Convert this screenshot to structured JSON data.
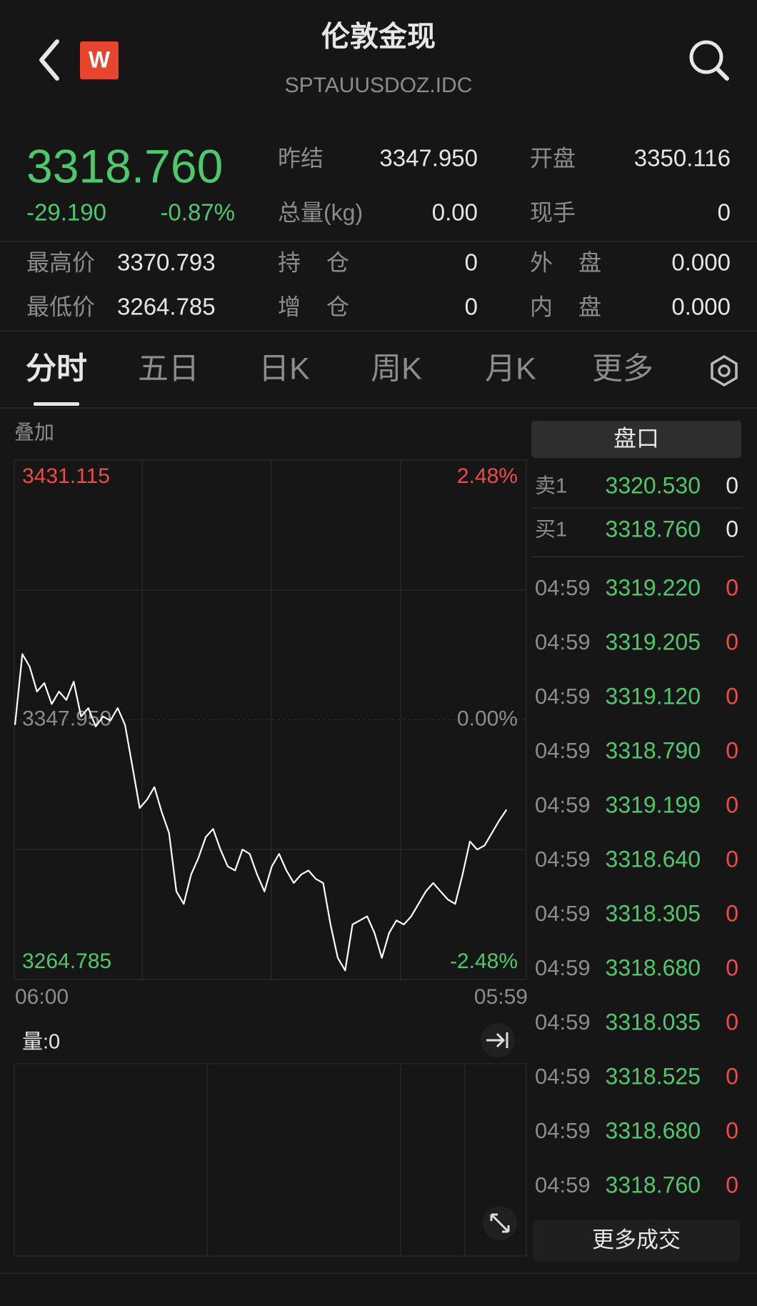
{
  "header": {
    "title": "伦敦金现",
    "code": "SPTAUUSDOZ.IDC",
    "badge": "W"
  },
  "quote": {
    "price": "3318.760",
    "change": "-29.190",
    "change_pct": "-0.87%"
  },
  "stats_top": [
    [
      {
        "label": "昨结",
        "value": "3347.950"
      },
      {
        "label": "开盘",
        "value": "3350.116"
      }
    ],
    [
      {
        "label": "总量(kg)",
        "value": "0.00"
      },
      {
        "label": "现手",
        "value": "0"
      }
    ]
  ],
  "stats_bottom": [
    [
      {
        "label": "最高价",
        "value": "3370.793"
      },
      {
        "label": "持仓",
        "value": "0"
      },
      {
        "label": "外盘",
        "value": "0.000"
      }
    ],
    [
      {
        "label": "最低价",
        "value": "3264.785"
      },
      {
        "label": "增仓",
        "value": "0"
      },
      {
        "label": "内盘",
        "value": "0.000"
      }
    ]
  ],
  "tabs": [
    "分时",
    "五日",
    "日K",
    "周K",
    "月K",
    "更多"
  ],
  "overlay": "叠加",
  "chart_data": {
    "type": "line",
    "color": "#ffffff",
    "ylim": [
      3264.785,
      3431.115
    ],
    "yticks": [
      3264.785,
      {
        "value": 3347.95,
        "label": "3347.950"
      },
      3431.115
    ],
    "y2lim": [
      -2.48,
      2.48
    ],
    "y2ticks": [
      {
        "value": -2.48,
        "label": "-2.48%"
      },
      {
        "value": 0,
        "label": "0.00%"
      },
      {
        "value": 2.48,
        "label": "2.48%"
      }
    ],
    "x_labels": [
      "06:00",
      "05:59"
    ],
    "values": [
      3346.3,
      3369.0,
      3365.0,
      3357.0,
      3359.7,
      3353.0,
      3357.0,
      3354.3,
      3360.2,
      3349.0,
      3351.7,
      3345.8,
      3349.0,
      3347.7,
      3351.7,
      3346.3,
      3333.0,
      3319.7,
      3322.4,
      3326.4,
      3318.4,
      3311.7,
      3293.0,
      3289.0,
      3298.4,
      3303.7,
      3310.4,
      3313.0,
      3306.4,
      3301.0,
      3299.7,
      3306.4,
      3305.0,
      3298.4,
      3293.0,
      3301.0,
      3305.0,
      3299.7,
      3295.7,
      3298.4,
      3299.7,
      3297.0,
      3295.7,
      3282.4,
      3271.7,
      3267.7,
      3282.4,
      3283.7,
      3285.0,
      3279.7,
      3271.7,
      3279.7,
      3283.7,
      3282.4,
      3285.0,
      3289.0,
      3293.0,
      3295.7,
      3293.0,
      3290.4,
      3289.0,
      3298.4,
      3309.0,
      3306.4,
      3307.7,
      3311.7,
      3315.7,
      3319.2
    ]
  },
  "volume": {
    "label": "量:0"
  },
  "order_book": {
    "title": "盘口",
    "levels": [
      {
        "side": "卖1",
        "price": "3320.530",
        "volume": "0"
      },
      {
        "side": "买1",
        "price": "3318.760",
        "volume": "0"
      }
    ],
    "trades": [
      {
        "time": "04:59",
        "price": "3319.220",
        "volume": "0"
      },
      {
        "time": "04:59",
        "price": "3319.205",
        "volume": "0"
      },
      {
        "time": "04:59",
        "price": "3319.120",
        "volume": "0"
      },
      {
        "time": "04:59",
        "price": "3318.790",
        "volume": "0"
      },
      {
        "time": "04:59",
        "price": "3319.199",
        "volume": "0"
      },
      {
        "time": "04:59",
        "price": "3318.640",
        "volume": "0"
      },
      {
        "time": "04:59",
        "price": "3318.305",
        "volume": "0"
      },
      {
        "time": "04:59",
        "price": "3318.680",
        "volume": "0"
      },
      {
        "time": "04:59",
        "price": "3318.035",
        "volume": "0"
      },
      {
        "time": "04:59",
        "price": "3318.525",
        "volume": "0"
      },
      {
        "time": "04:59",
        "price": "3318.680",
        "volume": "0"
      },
      {
        "time": "04:59",
        "price": "3318.760",
        "volume": "0"
      }
    ],
    "more": "更多成交"
  }
}
